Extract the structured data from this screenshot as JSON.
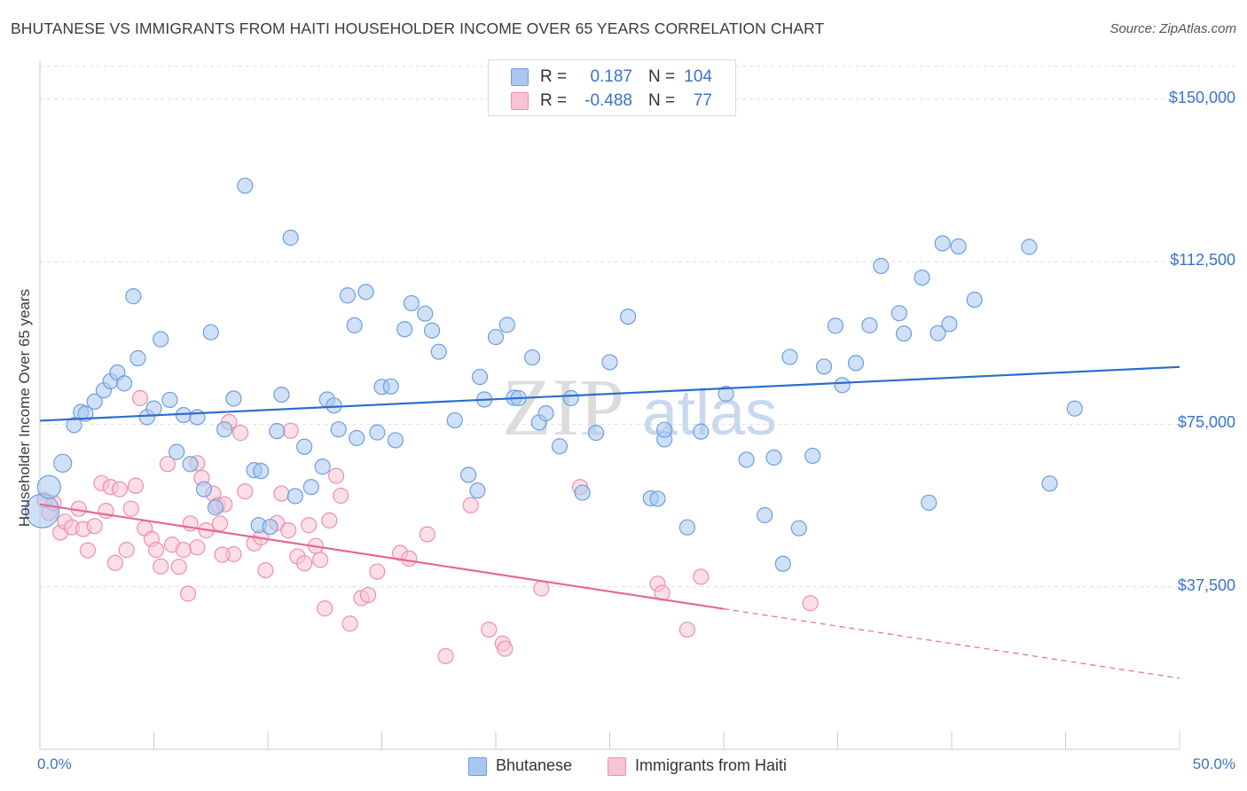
{
  "title": "BHUTANESE VS IMMIGRANTS FROM HAITI HOUSEHOLDER INCOME OVER 65 YEARS CORRELATION CHART",
  "source": "Source: ZipAtlas.com",
  "watermark": {
    "zip": "ZIP",
    "atlas": "atlas"
  },
  "legend_top": {
    "rows": [
      {
        "r_label": "R =",
        "r_value": "0.187",
        "n_label": "N =",
        "n_value": "104",
        "color": "#a9c8f0",
        "border": "#6c9ee0"
      },
      {
        "r_label": "R =",
        "r_value": "-0.488",
        "n_label": "N =",
        "n_value": "77",
        "color": "#f9c3d4",
        "border": "#ee8fae"
      }
    ]
  },
  "legend_bottom": [
    {
      "label": "Bhutanese",
      "color": "#a9c8f0",
      "border": "#6c9ee0"
    },
    {
      "label": "Immigrants from Haiti",
      "color": "#f9c3d4",
      "border": "#ee8fae"
    }
  ],
  "chart_data": {
    "type": "scatter",
    "title": "BHUTANESE VS IMMIGRANTS FROM HAITI HOUSEHOLDER INCOME OVER 65 YEARS CORRELATION CHART",
    "xlabel": "",
    "ylabel": "Householder Income Over 65 years",
    "xlim": [
      0,
      50
    ],
    "ylim": [
      0,
      157500
    ],
    "x_tick_labels": [
      "0.0%",
      "50.0%"
    ],
    "y_ticks": [
      37500,
      75000,
      112500,
      150000
    ],
    "y_tick_labels": [
      "$37,500",
      "$75,000",
      "$112,500",
      "$150,000"
    ],
    "grid": "horizontal dashed",
    "legend": "top-center",
    "series": [
      {
        "name": "Bhutanese",
        "color": "#6c9ee0",
        "fill": "#a9c8f0",
        "trend": {
          "x": [
            0,
            50
          ],
          "y": [
            75800,
            88200
          ],
          "color": "#2a6dcc"
        },
        "points": [
          [
            0.1,
            55000
          ],
          [
            0.4,
            60500
          ],
          [
            1.0,
            66000
          ],
          [
            1.5,
            74800
          ],
          [
            1.8,
            77800
          ],
          [
            2.0,
            77400
          ],
          [
            2.4,
            80200
          ],
          [
            2.8,
            82800
          ],
          [
            3.1,
            84900
          ],
          [
            3.4,
            86900
          ],
          [
            3.7,
            84400
          ],
          [
            4.1,
            104500
          ],
          [
            4.3,
            90200
          ],
          [
            4.7,
            76600
          ],
          [
            5.0,
            78600
          ],
          [
            5.3,
            94600
          ],
          [
            5.7,
            80600
          ],
          [
            6.0,
            68600
          ],
          [
            6.3,
            77100
          ],
          [
            6.6,
            65800
          ],
          [
            6.9,
            76600
          ],
          [
            7.2,
            60000
          ],
          [
            7.5,
            96200
          ],
          [
            7.7,
            55800
          ],
          [
            8.1,
            73800
          ],
          [
            8.5,
            80900
          ],
          [
            9.0,
            130000
          ],
          [
            9.4,
            64400
          ],
          [
            9.7,
            64200
          ],
          [
            9.6,
            51700
          ],
          [
            10.1,
            51300
          ],
          [
            10.4,
            73400
          ],
          [
            10.6,
            81800
          ],
          [
            11.0,
            118000
          ],
          [
            11.2,
            58400
          ],
          [
            11.6,
            69800
          ],
          [
            11.9,
            60500
          ],
          [
            12.4,
            65200
          ],
          [
            12.6,
            80700
          ],
          [
            12.9,
            79300
          ],
          [
            13.1,
            73800
          ],
          [
            13.5,
            104700
          ],
          [
            13.8,
            97800
          ],
          [
            13.9,
            71800
          ],
          [
            14.3,
            105500
          ],
          [
            14.8,
            73100
          ],
          [
            15.0,
            83600
          ],
          [
            15.4,
            83700
          ],
          [
            15.6,
            71300
          ],
          [
            16.0,
            96900
          ],
          [
            16.3,
            102900
          ],
          [
            16.9,
            100500
          ],
          [
            17.2,
            96600
          ],
          [
            17.5,
            91700
          ],
          [
            18.2,
            75900
          ],
          [
            18.8,
            63300
          ],
          [
            19.2,
            59700
          ],
          [
            19.3,
            85900
          ],
          [
            19.5,
            80700
          ],
          [
            20.0,
            95100
          ],
          [
            20.5,
            97900
          ],
          [
            20.8,
            81100
          ],
          [
            21.0,
            81000
          ],
          [
            21.6,
            90400
          ],
          [
            21.9,
            75400
          ],
          [
            22.2,
            77500
          ],
          [
            22.8,
            69900
          ],
          [
            23.3,
            81000
          ],
          [
            23.8,
            59200
          ],
          [
            24.4,
            73000
          ],
          [
            25.0,
            89300
          ],
          [
            25.8,
            99800
          ],
          [
            26.8,
            57900
          ],
          [
            27.1,
            57800
          ],
          [
            27.4,
            71500
          ],
          [
            27.4,
            73700
          ],
          [
            28.4,
            51200
          ],
          [
            29.0,
            73300
          ],
          [
            30.1,
            82000
          ],
          [
            31.0,
            66800
          ],
          [
            31.8,
            54000
          ],
          [
            32.2,
            67300
          ],
          [
            32.6,
            42800
          ],
          [
            32.9,
            90500
          ],
          [
            33.3,
            51000
          ],
          [
            33.9,
            67700
          ],
          [
            34.4,
            88300
          ],
          [
            34.9,
            97700
          ],
          [
            35.2,
            84000
          ],
          [
            35.8,
            89100
          ],
          [
            36.4,
            97800
          ],
          [
            36.9,
            111500
          ],
          [
            37.7,
            100600
          ],
          [
            37.9,
            95900
          ],
          [
            38.7,
            108800
          ],
          [
            39.0,
            56900
          ],
          [
            39.4,
            96000
          ],
          [
            39.6,
            116700
          ],
          [
            39.9,
            98100
          ],
          [
            40.3,
            116000
          ],
          [
            41.0,
            103700
          ],
          [
            43.4,
            115900
          ],
          [
            44.3,
            61300
          ],
          [
            45.4,
            78600
          ]
        ],
        "large_points": [
          [
            0.1,
            55000
          ],
          [
            0.4,
            60500
          ],
          [
            1.0,
            66000
          ]
        ]
      },
      {
        "name": "Immigrants from Haiti",
        "color": "#ee8fae",
        "fill": "#f9c3d4",
        "trend": {
          "x": [
            0,
            30
          ],
          "y": [
            56500,
            32400
          ],
          "color": "#e5689a",
          "dashed_extension": {
            "x": [
              30,
              50
            ],
            "y": [
              32400,
              16400
            ]
          }
        },
        "points": [
          [
            0.2,
            57500
          ],
          [
            0.4,
            54500
          ],
          [
            0.6,
            56800
          ],
          [
            0.9,
            50000
          ],
          [
            1.1,
            52500
          ],
          [
            1.4,
            51200
          ],
          [
            1.7,
            55500
          ],
          [
            1.9,
            50800
          ],
          [
            2.1,
            45900
          ],
          [
            2.4,
            51500
          ],
          [
            2.7,
            61400
          ],
          [
            2.9,
            55000
          ],
          [
            3.1,
            60500
          ],
          [
            3.3,
            43000
          ],
          [
            3.5,
            60000
          ],
          [
            3.8,
            46000
          ],
          [
            4.0,
            55500
          ],
          [
            4.2,
            60800
          ],
          [
            4.4,
            81000
          ],
          [
            4.6,
            51000
          ],
          [
            4.9,
            48500
          ],
          [
            5.1,
            46000
          ],
          [
            5.3,
            42200
          ],
          [
            5.6,
            65800
          ],
          [
            5.8,
            47200
          ],
          [
            6.1,
            42100
          ],
          [
            6.3,
            46000
          ],
          [
            6.5,
            35900
          ],
          [
            6.6,
            52100
          ],
          [
            6.9,
            46600
          ],
          [
            7.1,
            62600
          ],
          [
            7.3,
            50500
          ],
          [
            7.6,
            59000
          ],
          [
            7.8,
            56300
          ],
          [
            7.9,
            52100
          ],
          [
            8.1,
            56500
          ],
          [
            8.3,
            75500
          ],
          [
            8.5,
            45000
          ],
          [
            8.8,
            73000
          ],
          [
            9.0,
            59500
          ],
          [
            9.4,
            47500
          ],
          [
            9.7,
            48900
          ],
          [
            9.9,
            41300
          ],
          [
            10.4,
            52200
          ],
          [
            10.6,
            59000
          ],
          [
            10.9,
            50500
          ],
          [
            11.0,
            73500
          ],
          [
            11.3,
            44500
          ],
          [
            11.6,
            42900
          ],
          [
            11.8,
            51700
          ],
          [
            12.1,
            46900
          ],
          [
            12.3,
            43700
          ],
          [
            12.5,
            32500
          ],
          [
            12.7,
            52800
          ],
          [
            13.0,
            63100
          ],
          [
            13.2,
            58500
          ],
          [
            13.6,
            29000
          ],
          [
            14.1,
            34900
          ],
          [
            14.4,
            35600
          ],
          [
            14.8,
            41000
          ],
          [
            15.8,
            45300
          ],
          [
            16.2,
            44000
          ],
          [
            17.0,
            49600
          ],
          [
            17.8,
            21500
          ],
          [
            18.9,
            56300
          ],
          [
            19.7,
            27600
          ],
          [
            20.3,
            24400
          ],
          [
            20.4,
            23200
          ],
          [
            22.0,
            37100
          ],
          [
            23.7,
            60500
          ],
          [
            27.1,
            38200
          ],
          [
            27.3,
            36100
          ],
          [
            28.4,
            27600
          ],
          [
            29.0,
            39800
          ],
          [
            33.8,
            33700
          ],
          [
            8.0,
            44900
          ],
          [
            6.9,
            66000
          ]
        ]
      }
    ]
  }
}
